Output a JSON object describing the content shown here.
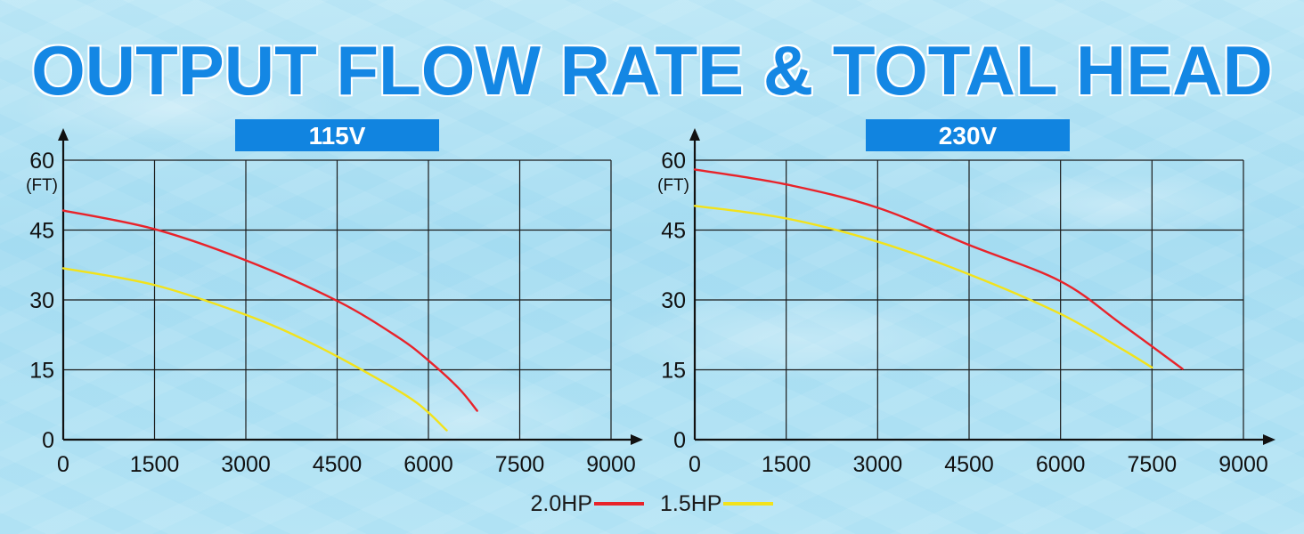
{
  "title": "OUTPUT FLOW RATE & TOTAL HEAD",
  "legend": [
    {
      "label": "2.0HP",
      "color": "#e8232a"
    },
    {
      "label": "1.5HP",
      "color": "#f2e21c"
    }
  ],
  "chart_data": [
    {
      "type": "line",
      "title": "115V",
      "ylabel": "(FT)",
      "xlabel": "",
      "xlim": [
        0,
        9000
      ],
      "ylim": [
        0,
        60
      ],
      "xticks": [
        "0",
        "1500",
        "3000",
        "4500",
        "6000",
        "7500",
        "9000"
      ],
      "yticks": [
        "0",
        "15",
        "30",
        "45",
        "60"
      ],
      "grid": true,
      "series": [
        {
          "name": "2.0HP",
          "color": "#e8232a",
          "points": [
            [
              0,
              49.2
            ],
            [
              1500,
              45.2
            ],
            [
              3000,
              38.5
            ],
            [
              4500,
              29.8
            ],
            [
              5500,
              22.0
            ],
            [
              6000,
              17.0
            ],
            [
              6500,
              11.0
            ],
            [
              6800,
              6.2
            ]
          ]
        },
        {
          "name": "1.5HP",
          "color": "#f2e21c",
          "points": [
            [
              0,
              36.8
            ],
            [
              1500,
              33.2
            ],
            [
              3000,
              26.8
            ],
            [
              4000,
              21.2
            ],
            [
              5000,
              14.3
            ],
            [
              5800,
              8.0
            ],
            [
              6300,
              2.0
            ]
          ]
        }
      ]
    },
    {
      "type": "line",
      "title": "230V",
      "ylabel": "(FT)",
      "xlabel": "",
      "xlim": [
        0,
        9000
      ],
      "ylim": [
        0,
        60
      ],
      "xticks": [
        "0",
        "1500",
        "3000",
        "4500",
        "6000",
        "7500",
        "9000"
      ],
      "yticks": [
        "0",
        "15",
        "30",
        "45",
        "60"
      ],
      "grid": true,
      "series": [
        {
          "name": "2.0HP",
          "color": "#e8232a",
          "points": [
            [
              0,
              58.0
            ],
            [
              1500,
              54.8
            ],
            [
              3000,
              49.8
            ],
            [
              4500,
              41.8
            ],
            [
              6000,
              34.0
            ],
            [
              7000,
              24.8
            ],
            [
              8000,
              15.2
            ]
          ]
        },
        {
          "name": "1.5HP",
          "color": "#f2e21c",
          "points": [
            [
              0,
              50.2
            ],
            [
              1500,
              47.5
            ],
            [
              3000,
              42.5
            ],
            [
              4500,
              35.5
            ],
            [
              6000,
              27.0
            ],
            [
              7000,
              19.5
            ],
            [
              7500,
              15.5
            ]
          ]
        }
      ]
    }
  ]
}
